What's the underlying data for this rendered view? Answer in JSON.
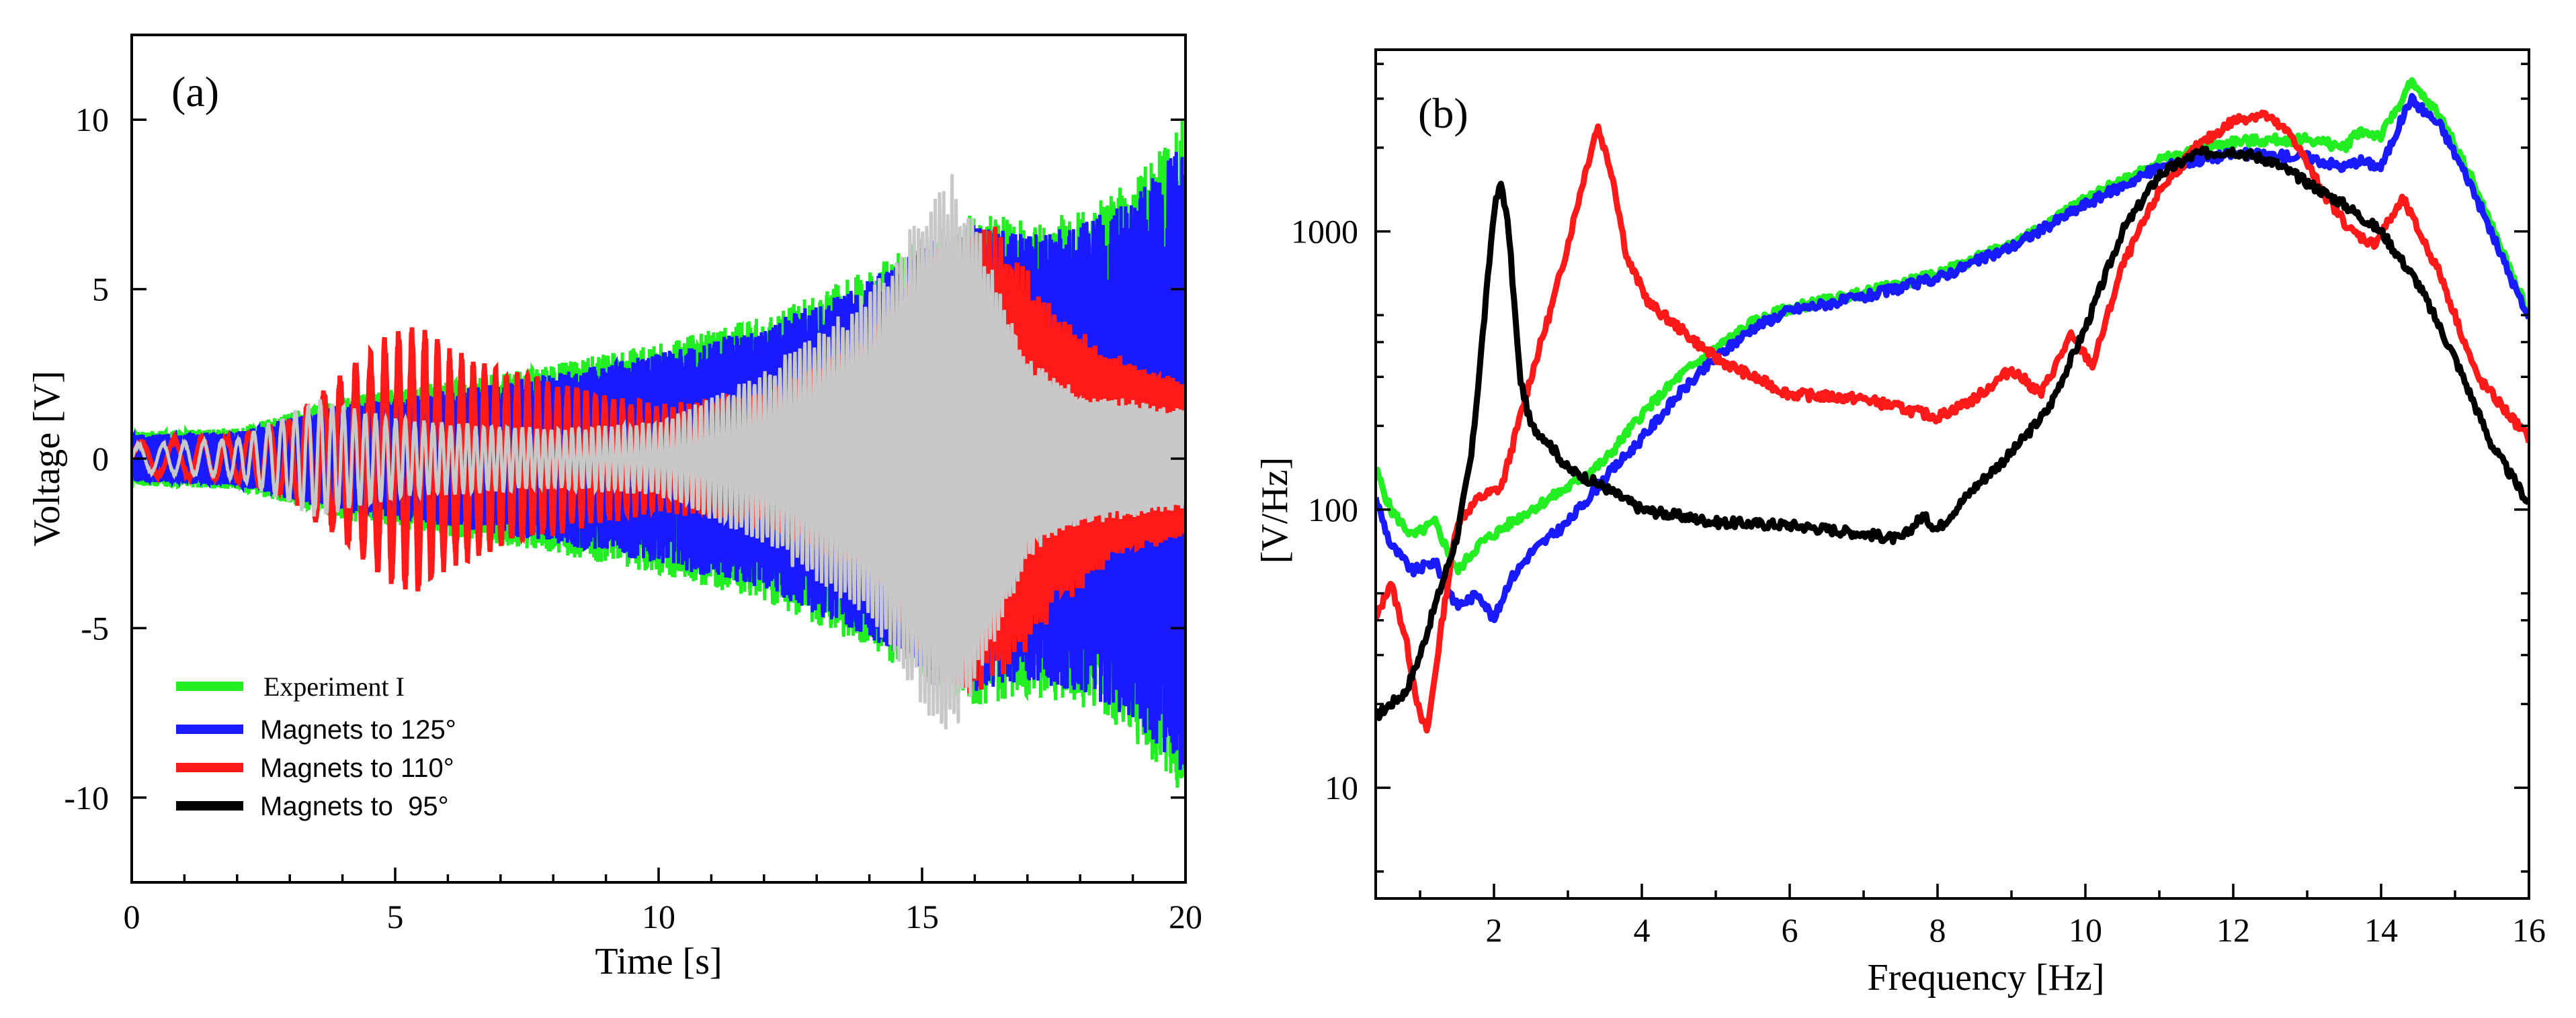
{
  "colors": {
    "experiment": "#22ee22",
    "m125": "#1a1aff",
    "m110": "#ff1a1a",
    "m95": "#000000",
    "gray_overlay": "#c8c8c8",
    "pink_overlay": "#ff9a9a"
  },
  "chart_data": [
    {
      "id": "a",
      "type": "line",
      "panel_label": "(a)",
      "xlabel": "Time [s]",
      "ylabel": "Voltage [V]",
      "xlim": [
        0,
        20
      ],
      "ylim": [
        -12.5,
        12.5
      ],
      "x_ticks": [
        0,
        5,
        10,
        15,
        20
      ],
      "x_tick_labels": [
        "0",
        "5",
        "10",
        "15",
        "20"
      ],
      "y_ticks": [
        -10,
        -5,
        0,
        5,
        10
      ],
      "y_tick_labels": [
        "-10",
        "-5",
        "0",
        "5",
        "10"
      ],
      "legend": {
        "position": "bottom-left",
        "entries": [
          "Experiment I",
          "Magnets to 125°",
          "Magnets to 110°",
          "Magnets to  95°"
        ]
      },
      "series": [
        {
          "name": "Experiment I",
          "envelope_t": [
            0,
            2,
            4,
            6,
            8,
            10,
            12,
            14,
            15,
            16,
            17,
            18,
            19,
            20
          ],
          "envelope_amp": [
            0.8,
            0.9,
            1.8,
            2.3,
            2.8,
            3.4,
            4.2,
            5.6,
            6.6,
            7.3,
            7.0,
            7.3,
            8.3,
            10.2
          ]
        },
        {
          "name": "Magnets to 125°",
          "envelope_t": [
            0,
            2,
            4,
            6,
            8,
            10,
            12,
            14,
            15,
            16,
            17,
            18,
            19,
            20
          ],
          "envelope_amp": [
            0.7,
            0.8,
            1.6,
            2.0,
            2.5,
            3.1,
            3.9,
            5.3,
            6.3,
            6.9,
            6.6,
            6.9,
            7.7,
            9.4
          ]
        },
        {
          "name": "Magnets to 110°",
          "envelope_t": [
            0,
            2,
            3,
            4,
            5,
            5.5,
            6,
            7,
            8,
            10,
            12,
            14,
            15,
            15.8,
            16.5,
            17.5,
            18.5,
            20
          ],
          "envelope_amp": [
            0.5,
            0.7,
            1.2,
            2.6,
            3.9,
            4.1,
            3.3,
            2.7,
            2.3,
            1.6,
            2.0,
            3.6,
            6.0,
            7.2,
            6.8,
            4.6,
            3.2,
            2.4
          ]
        },
        {
          "name": "gray_overlay",
          "envelope_t": [
            0,
            2,
            3.5,
            5,
            8,
            10,
            12,
            14,
            15,
            15.6,
            16.3,
            17,
            18,
            20
          ],
          "envelope_amp": [
            0.4,
            0.6,
            1.8,
            1.2,
            0.9,
            1.1,
            2.6,
            5.0,
            7.5,
            8.5,
            6.0,
            3.0,
            2.0,
            1.5
          ]
        }
      ]
    },
    {
      "id": "b",
      "type": "line",
      "panel_label": "(b)",
      "xlabel": "Frequency [Hz]",
      "ylabel": "[V/Hz]",
      "yscale": "log",
      "xlim": [
        0.4,
        16
      ],
      "ylim": [
        4,
        4500
      ],
      "x_ticks": [
        2,
        4,
        6,
        8,
        10,
        12,
        14,
        16
      ],
      "x_tick_labels": [
        "2",
        "4",
        "6",
        "8",
        "10",
        "12",
        "14",
        "16"
      ],
      "y_ticks": [
        10,
        100,
        1000
      ],
      "y_tick_labels": [
        "10",
        "100",
        "1000"
      ],
      "series": [
        {
          "name": "Experiment I",
          "x": [
            0.4,
            0.6,
            0.9,
            1.2,
            1.5,
            1.8,
            2.1,
            2.5,
            3.0,
            3.5,
            4.0,
            4.5,
            5.0,
            5.5,
            6.0,
            7.0,
            8.0,
            9.0,
            10.0,
            11.0,
            12.0,
            13.0,
            13.5,
            13.7,
            14.0,
            14.4,
            14.8,
            15.2,
            15.6,
            16.0
          ],
          "y": [
            140,
            100,
            80,
            90,
            60,
            75,
            85,
            100,
            120,
            150,
            220,
            300,
            380,
            470,
            530,
            600,
            700,
            900,
            1300,
            1800,
            2100,
            2150,
            2000,
            2300,
            2200,
            3400,
            2600,
            1600,
            900,
            500
          ]
        },
        {
          "name": "Magnets to 125°",
          "x": [
            0.4,
            0.6,
            0.9,
            1.2,
            1.5,
            1.8,
            2.0,
            2.2,
            2.5,
            3.0,
            3.5,
            4.0,
            4.5,
            5.0,
            5.5,
            6.0,
            7.0,
            8.0,
            9.0,
            10.0,
            11.0,
            12.0,
            13.0,
            13.5,
            13.7,
            14.0,
            14.4,
            14.8,
            15.2,
            15.6,
            16.0
          ],
          "y": [
            110,
            75,
            60,
            65,
            45,
            50,
            40,
            55,
            70,
            90,
            130,
            180,
            260,
            350,
            450,
            520,
            580,
            680,
            880,
            1250,
            1700,
            1900,
            1850,
            1700,
            1800,
            1700,
            3000,
            2400,
            1500,
            850,
            480
          ]
        },
        {
          "name": "Magnets to 110°",
          "x": [
            0.4,
            0.6,
            0.8,
            1.0,
            1.1,
            1.3,
            1.5,
            1.8,
            2.1,
            2.5,
            2.8,
            3.0,
            3.2,
            3.4,
            3.6,
            3.8,
            4.1,
            4.5,
            5.0,
            5.5,
            6.0,
            7.0,
            8.0,
            8.5,
            9.0,
            9.4,
            9.8,
            10.1,
            10.5,
            11.0,
            11.5,
            12.0,
            12.4,
            12.8,
            13.2,
            13.6,
            13.9,
            14.3,
            14.8,
            15.3,
            16.0
          ],
          "y": [
            40,
            55,
            35,
            18,
            16,
            40,
            90,
            110,
            120,
            300,
            560,
            900,
            1500,
            2400,
            1600,
            800,
            550,
            450,
            350,
            300,
            260,
            250,
            215,
            250,
            320,
            260,
            420,
            330,
            750,
            1400,
            2000,
            2500,
            2650,
            2200,
            1400,
            1000,
            900,
            1300,
            700,
            300,
            180
          ]
        },
        {
          "name": "Magnets to  95°",
          "x": [
            0.4,
            0.6,
            0.8,
            1.0,
            1.2,
            1.5,
            1.7,
            1.9,
            2.0,
            2.1,
            2.2,
            2.35,
            2.5,
            2.7,
            3.0,
            3.5,
            4.0,
            5.0,
            6.0,
            7.0,
            7.5,
            7.8,
            8.0,
            8.5,
            9.0,
            9.5,
            10.0,
            10.5,
            11.0,
            11.5,
            12.0,
            12.5,
            13.0,
            13.5,
            14.0,
            14.5,
            15.0,
            15.5,
            16.0
          ],
          "y": [
            18,
            20,
            22,
            30,
            45,
            80,
            160,
            600,
            1200,
            1500,
            1000,
            300,
            200,
            180,
            140,
            120,
            100,
            90,
            88,
            82,
            78,
            95,
            85,
            120,
            160,
            230,
            450,
            1000,
            1600,
            1900,
            1950,
            1800,
            1500,
            1250,
            1000,
            650,
            350,
            170,
            105
          ]
        }
      ]
    }
  ]
}
